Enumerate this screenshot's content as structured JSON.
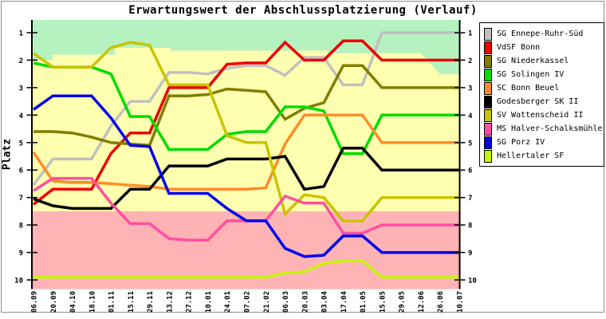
{
  "chart_data": {
    "type": "line",
    "title": "Erwartungswert der Abschlussplatzierung (Verlauf)",
    "ylabel": "Platz",
    "y_axis": {
      "min": 1,
      "max": 10,
      "inverted": true,
      "ticks": [
        1,
        2,
        3,
        4,
        5,
        6,
        7,
        8,
        9,
        10
      ]
    },
    "x_labels": [
      "06.09",
      "20.09",
      "04.10",
      "18.10",
      "01.11",
      "15.11",
      "29.11",
      "13.12",
      "27.12",
      "10.01",
      "24.01",
      "07.02",
      "21.02",
      "06.03",
      "20.03",
      "03.04",
      "17.04",
      "01.05",
      "15.05",
      "29.05",
      "12.06",
      "26.06",
      "10.07"
    ],
    "grid": false,
    "legend_position": "right",
    "zones": [
      {
        "name": "top-zone",
        "color": "#b5f2bf",
        "boundary_points": [
          [
            0,
            2.0
          ],
          [
            1,
            2.0
          ],
          [
            1,
            1.8
          ],
          [
            4.2,
            1.8
          ],
          [
            4.2,
            1.55
          ],
          [
            7.1,
            1.55
          ],
          [
            7.1,
            1.65
          ],
          [
            15.2,
            1.65
          ],
          [
            15.2,
            1.75
          ],
          [
            20,
            1.75
          ],
          [
            21,
            2.5
          ],
          [
            22,
            2.5
          ]
        ]
      },
      {
        "name": "mid-zone",
        "color": "#ffffb0"
      },
      {
        "name": "bottom-zone",
        "color": "#ffb3b5",
        "from_place": 7.5
      }
    ],
    "series": [
      {
        "name": "SG Ennepe-Ruhr-Süd",
        "color": "#c0c0c0",
        "values": [
          6.55,
          5.6,
          5.6,
          5.6,
          4.4,
          3.5,
          3.5,
          2.45,
          2.45,
          2.5,
          2.3,
          2.2,
          2.2,
          2.55,
          1.9,
          1.9,
          2.9,
          2.9,
          1.0,
          1.0,
          1.0,
          1.0,
          1.0
        ]
      },
      {
        "name": "VdSF Bonn",
        "color": "#ee0000",
        "values": [
          7.25,
          6.7,
          6.7,
          6.7,
          5.4,
          4.65,
          4.65,
          3.0,
          3.0,
          3.0,
          2.15,
          2.1,
          2.1,
          1.35,
          2.0,
          2.0,
          1.3,
          1.3,
          2.0,
          2.0,
          2.0,
          2.0,
          2.0
        ]
      },
      {
        "name": "SG Niederkassel",
        "color": "#827d00",
        "values": [
          4.6,
          4.6,
          4.65,
          4.8,
          5.0,
          5.05,
          5.1,
          3.3,
          3.3,
          3.25,
          3.05,
          3.1,
          3.15,
          4.15,
          3.75,
          3.55,
          2.2,
          2.2,
          3.0,
          3.0,
          3.0,
          3.0,
          3.0
        ]
      },
      {
        "name": "SG Solingen IV",
        "color": "#00dd00",
        "values": [
          2.1,
          2.25,
          2.25,
          2.25,
          2.5,
          4.05,
          4.05,
          5.25,
          5.25,
          5.25,
          4.7,
          4.6,
          4.6,
          3.7,
          3.7,
          3.85,
          5.4,
          5.4,
          4.0,
          4.0,
          4.0,
          4.0,
          4.0
        ]
      },
      {
        "name": "SC Bonn Beuel",
        "color": "#ff8c28",
        "values": [
          5.35,
          6.4,
          6.45,
          6.45,
          6.5,
          6.55,
          6.6,
          6.7,
          6.7,
          6.7,
          6.7,
          6.7,
          6.65,
          5.05,
          4.0,
          4.0,
          4.0,
          4.0,
          5.0,
          5.0,
          5.0,
          5.0,
          5.0
        ]
      },
      {
        "name": "Godesberger SK II",
        "color": "#000000",
        "values": [
          7.05,
          7.3,
          7.4,
          7.4,
          7.4,
          6.7,
          6.7,
          5.85,
          5.85,
          5.85,
          5.6,
          5.6,
          5.6,
          5.5,
          6.7,
          6.6,
          5.2,
          5.2,
          6.0,
          6.0,
          6.0,
          6.0,
          6.0
        ]
      },
      {
        "name": "SV Wattenscheid II",
        "color": "#c9c400",
        "values": [
          1.75,
          2.25,
          2.25,
          2.25,
          1.55,
          1.35,
          1.45,
          2.9,
          2.9,
          2.9,
          4.75,
          5.0,
          5.0,
          7.6,
          6.9,
          7.0,
          7.85,
          7.85,
          7.0,
          7.0,
          7.0,
          7.0,
          7.0
        ]
      },
      {
        "name": "MS Halver-Schalksmühle",
        "color": "#ff4fa0",
        "values": [
          6.75,
          6.3,
          6.3,
          6.3,
          7.2,
          7.95,
          7.95,
          8.5,
          8.55,
          8.55,
          7.85,
          7.85,
          7.85,
          6.95,
          7.2,
          7.2,
          8.3,
          8.3,
          8.0,
          8.0,
          8.0,
          8.0,
          8.0
        ]
      },
      {
        "name": "SG Porz IV",
        "color": "#0000ee",
        "values": [
          3.8,
          3.3,
          3.3,
          3.3,
          4.1,
          5.1,
          5.15,
          6.85,
          6.85,
          6.85,
          7.4,
          7.85,
          7.85,
          8.85,
          9.15,
          9.1,
          8.4,
          8.4,
          9.0,
          9.0,
          9.0,
          9.0,
          9.0
        ]
      },
      {
        "name": "Hellertaler SF",
        "color": "#c6f50a",
        "values": [
          9.9,
          9.9,
          9.9,
          9.9,
          9.9,
          9.9,
          9.9,
          9.9,
          9.9,
          9.9,
          9.9,
          9.9,
          9.9,
          9.75,
          9.7,
          9.4,
          9.3,
          9.3,
          9.9,
          9.9,
          9.9,
          9.9,
          9.9
        ]
      }
    ]
  }
}
